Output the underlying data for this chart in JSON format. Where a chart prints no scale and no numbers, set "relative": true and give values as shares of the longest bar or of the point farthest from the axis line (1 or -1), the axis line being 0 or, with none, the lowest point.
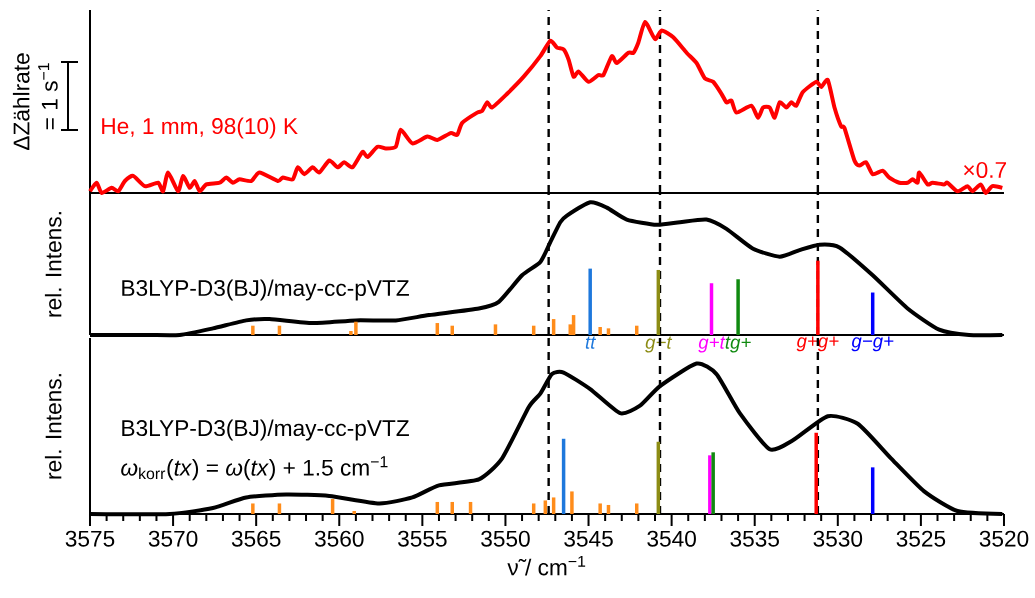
{
  "chart_data": [
    {
      "type": "line",
      "relative": true,
      "xlim": [
        3575,
        3520
      ],
      "tick_labels": false,
      "ylabel": "ΔZählrate",
      "annotations": [
        "He, 1 mm, 98(10) K",
        "×0.7",
        "= 1 s$^{−1}$"
      ],
      "ref_lines": [
        {
          "axis": "x",
          "value": 3547.4,
          "color": "#000000",
          "line_style": "dashed"
        },
        {
          "axis": "x",
          "value": 3540.7,
          "color": "#000000",
          "line_style": "dashed"
        },
        {
          "axis": "x",
          "value": 3531.2,
          "color": "#000000",
          "line_style": "dashed"
        }
      ],
      "series": [
        {
          "color": "#ff0000",
          "x": [
            3575.0,
            3574.6,
            3574.3,
            3573.7,
            3573.3,
            3572.9,
            3572.4,
            3571.7,
            3570.9,
            3570.6,
            3570.3,
            3569.7,
            3569.4,
            3569.0,
            3568.7,
            3568.4,
            3568.0,
            3567.2,
            3566.8,
            3566.4,
            3566.0,
            3565.3,
            3564.8,
            3563.7,
            3563.4,
            3562.8,
            3562.5,
            3562.1,
            3561.6,
            3561.2,
            3560.6,
            3560.1,
            3559.7,
            3559.2,
            3558.6,
            3558.3,
            3557.7,
            3557.2,
            3556.6,
            3556.3,
            3555.6,
            3554.7,
            3554.1,
            3553.3,
            3552.9,
            3552.6,
            3551.7,
            3551.4,
            3551.1,
            3550.8,
            3549.9,
            3548.9,
            3547.9,
            3547.3,
            3546.9,
            3546.5,
            3546.2,
            3545.9,
            3545.6,
            3545.0,
            3544.4,
            3544.1,
            3543.6,
            3543.3,
            3542.6,
            3542.3,
            3542.0,
            3541.6,
            3541.0,
            3540.6,
            3539.9,
            3539.1,
            3538.5,
            3538.0,
            3537.5,
            3537.0,
            3536.7,
            3536.4,
            3536.1,
            3535.2,
            3534.8,
            3534.5,
            3534.1,
            3533.8,
            3533.5,
            3533.1,
            3532.8,
            3532.5,
            3532.1,
            3531.3,
            3531.0,
            3530.6,
            3530.2,
            3529.8,
            3529.6,
            3529.0,
            3528.7,
            3528.3,
            3527.9,
            3527.3,
            3526.9,
            3526.3,
            3525.8,
            3525.5,
            3525.2,
            3525.1,
            3524.6,
            3524.3,
            3523.6,
            3523.4,
            3522.8,
            3522.2,
            3521.9,
            3521.4,
            3521.1,
            3520.7,
            3520.1
          ],
          "values": [
            0.01,
            0.06,
            0,
            0.03,
            0.01,
            0.07,
            0.1,
            0.04,
            0.06,
            0.01,
            0.12,
            0.01,
            0.1,
            0.03,
            0.07,
            0.01,
            0.05,
            0.06,
            0.09,
            0.06,
            0.08,
            0.07,
            0.12,
            0.07,
            0.09,
            0.08,
            0.15,
            0.11,
            0.15,
            0.12,
            0.19,
            0.15,
            0.18,
            0.15,
            0.24,
            0.21,
            0.27,
            0.26,
            0.27,
            0.37,
            0.29,
            0.33,
            0.31,
            0.35,
            0.34,
            0.41,
            0.47,
            0.48,
            0.53,
            0.5,
            0.58,
            0.68,
            0.8,
            0.89,
            0.85,
            0.84,
            0.78,
            0.68,
            0.71,
            0.65,
            0.69,
            0.69,
            0.8,
            0.76,
            0.82,
            0.82,
            0.88,
            1.0,
            0.9,
            0.95,
            0.91,
            0.82,
            0.76,
            0.67,
            0.65,
            0.58,
            0.53,
            0.54,
            0.47,
            0.51,
            0.44,
            0.5,
            0.5,
            0.44,
            0.53,
            0.5,
            0.53,
            0.51,
            0.59,
            0.65,
            0.62,
            0.66,
            0.5,
            0.39,
            0.38,
            0.19,
            0.16,
            0.18,
            0.11,
            0.13,
            0.09,
            0.06,
            0.06,
            0.08,
            0.06,
            0.12,
            0.05,
            0.06,
            0.05,
            0.06,
            0.01,
            0.04,
            0.01,
            0.05,
            0,
            0.04,
            0.03
          ]
        }
      ]
    },
    {
      "type": "line",
      "relative": true,
      "xlim": [
        3575,
        3520
      ],
      "tick_labels": false,
      "ylabel": "rel. Intens.",
      "annotations": [
        "B3LYP-D3(BJ)/may-cc-pVTZ"
      ],
      "ref_lines": [
        {
          "axis": "x",
          "value": 3547.4,
          "color": "#000000",
          "line_style": "dashed"
        },
        {
          "axis": "x",
          "value": 3540.7,
          "color": "#000000",
          "line_style": "dashed"
        },
        {
          "axis": "x",
          "value": 3531.2,
          "color": "#000000",
          "line_style": "dashed"
        }
      ],
      "series": [
        {
          "type": "line",
          "color": "#000000",
          "x": [
            3575.0,
            3571.6,
            3569.6,
            3567.6,
            3565.6,
            3564.2,
            3561.6,
            3559.0,
            3556.6,
            3554.6,
            3551.6,
            3550.4,
            3549.0,
            3547.9,
            3547.3,
            3546.7,
            3546.3,
            3544.9,
            3543.9,
            3542.7,
            3540.9,
            3539.5,
            3537.9,
            3536.7,
            3535.1,
            3533.5,
            3532.3,
            3531.1,
            3529.9,
            3527.9,
            3525.8,
            3523.9,
            3522.1,
            3520.1
          ],
          "values": [
            0,
            0,
            0,
            0.05,
            0.11,
            0.12,
            0.09,
            0.11,
            0.11,
            0.15,
            0.2,
            0.25,
            0.45,
            0.55,
            0.7,
            0.85,
            0.9,
            1.0,
            0.96,
            0.87,
            0.83,
            0.85,
            0.87,
            0.8,
            0.65,
            0.59,
            0.64,
            0.68,
            0.66,
            0.45,
            0.2,
            0.04,
            0,
            0
          ]
        },
        {
          "type": "bar",
          "color": "#ff8c1a",
          "x": [
            3565.2,
            3563.6,
            3559.3,
            3559.0,
            3554.1,
            3553.2,
            3550.6,
            3548.3,
            3547.1,
            3546.1,
            3545.9,
            3544.3,
            3543.8,
            3542.1
          ],
          "values": [
            0.07,
            0.07,
            0.03,
            0.1,
            0.09,
            0.07,
            0.08,
            0.07,
            0.12,
            0.08,
            0.15,
            0.06,
            0.05,
            0.07
          ]
        },
        {
          "type": "bar",
          "name": "tt",
          "color": "#1e78dc",
          "x": [
            3544.9
          ],
          "values": [
            0.5
          ]
        },
        {
          "type": "bar",
          "name": "g−t",
          "color": "#8c8c14",
          "x": [
            3540.8
          ],
          "values": [
            0.49
          ]
        },
        {
          "type": "bar",
          "name": "g+t",
          "color": "#ff00ff",
          "x": [
            3537.6
          ],
          "values": [
            0.39
          ]
        },
        {
          "type": "bar",
          "name": "tg+",
          "color": "#108a10",
          "x": [
            3536.0
          ],
          "values": [
            0.42
          ]
        },
        {
          "type": "bar",
          "name": "g+g+",
          "color": "#ff0000",
          "x": [
            3531.2
          ],
          "values": [
            0.56
          ]
        },
        {
          "type": "bar",
          "name": "g−g+",
          "color": "#0000ff",
          "x": [
            3527.9
          ],
          "values": [
            0.32
          ]
        }
      ]
    },
    {
      "type": "line",
      "relative": true,
      "xlim": [
        3575,
        3520
      ],
      "xticks": [
        3575,
        3570,
        3565,
        3560,
        3555,
        3550,
        3545,
        3540,
        3535,
        3530,
        3525,
        3520
      ],
      "tick_labels": "x",
      "xlabel": "ν̃ / cm$^{−1}$",
      "ylabel": "rel. Intens.",
      "annotations": [
        "B3LYP-D3(BJ)/may-cc-pVTZ",
        "*ω*$_{korr}$(*tx*) = *ω*(*tx*) + 1.5 cm$^{−1}$"
      ],
      "ref_lines": [
        {
          "axis": "x",
          "value": 3547.4,
          "color": "#000000",
          "line_style": "dashed"
        },
        {
          "axis": "x",
          "value": 3540.7,
          "color": "#000000",
          "line_style": "dashed"
        },
        {
          "axis": "x",
          "value": 3531.2,
          "color": "#000000",
          "line_style": "dashed"
        }
      ],
      "series": [
        {
          "type": "line",
          "color": "#000000",
          "x": [
            3575.0,
            3570.2,
            3567.6,
            3565.6,
            3563.2,
            3560.6,
            3557.6,
            3555.6,
            3554.0,
            3551.6,
            3550.2,
            3548.6,
            3547.9,
            3547.2,
            3546.5,
            3544.9,
            3543.1,
            3541.9,
            3540.7,
            3538.5,
            3537.3,
            3535.9,
            3534.1,
            3532.7,
            3530.6,
            3528.8,
            3526.8,
            3524.8,
            3522.8,
            3520.1
          ],
          "values": [
            0,
            0,
            0.04,
            0.11,
            0.13,
            0.12,
            0.07,
            0.11,
            0.19,
            0.23,
            0.37,
            0.71,
            0.8,
            0.93,
            0.94,
            0.83,
            0.67,
            0.72,
            0.85,
            1.0,
            0.93,
            0.67,
            0.43,
            0.49,
            0.65,
            0.6,
            0.37,
            0.15,
            0.02,
            0
          ]
        },
        {
          "type": "bar",
          "color": "#ff8c1a",
          "x": [
            3565.2,
            3563.6,
            3560.4,
            3559.1,
            3554.1,
            3553.2,
            3552.1,
            3548.3,
            3547.6,
            3547.1,
            3546.0,
            3544.3,
            3543.8,
            3542.1
          ],
          "values": [
            0.07,
            0.07,
            0.1,
            0.02,
            0.08,
            0.08,
            0.08,
            0.07,
            0.09,
            0.11,
            0.15,
            0.07,
            0.06,
            0.07
          ]
        },
        {
          "type": "bar",
          "colors": [
            "#1e78dc",
            "#8c8c14",
            "#ff00ff",
            "#108a10",
            "#ff0000",
            "#0000ff"
          ],
          "x": [
            3546.5,
            3540.8,
            3537.7,
            3537.5,
            3531.3,
            3527.9
          ],
          "values": [
            0.5,
            0.48,
            0.39,
            0.41,
            0.54,
            0.31
          ]
        }
      ]
    }
  ]
}
